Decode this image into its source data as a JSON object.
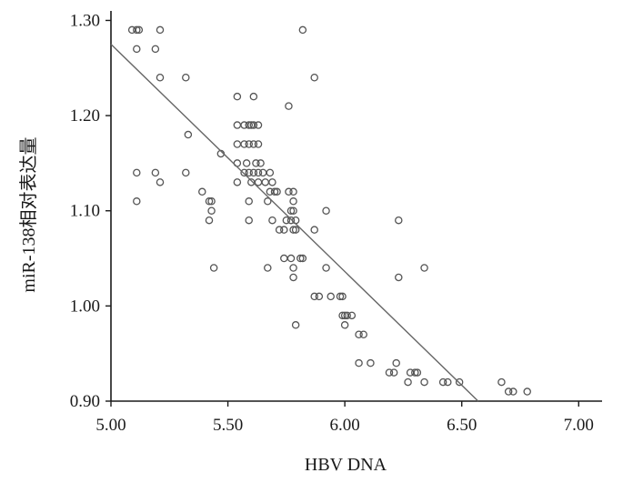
{
  "colors": {
    "axis": "#1a1a1a",
    "points": "#555555",
    "fit_line": "#666666",
    "background": "#ffffff"
  },
  "chart_data": {
    "type": "scatter",
    "title": "",
    "xlabel": "HBV DNA",
    "ylabel": "miR-138相对表达量",
    "xlim": [
      5.0,
      7.1
    ],
    "ylim": [
      0.9,
      1.31
    ],
    "xticks": [
      5.0,
      5.5,
      6.0,
      6.5,
      7.0
    ],
    "xtick_labels": [
      "5.00",
      "5.50",
      "6.00",
      "6.50",
      "7.00"
    ],
    "yticks": [
      0.9,
      1.0,
      1.1,
      1.2,
      1.3
    ],
    "ytick_labels": [
      "0.90",
      "1.00",
      "1.10",
      "1.20",
      "1.30"
    ],
    "grid": false,
    "legend": "none",
    "fit_line": {
      "x": [
        5.0,
        6.57
      ],
      "y": [
        1.275,
        0.9
      ]
    },
    "points": [
      [
        5.09,
        1.29
      ],
      [
        5.11,
        1.29
      ],
      [
        5.12,
        1.29
      ],
      [
        5.11,
        1.27
      ],
      [
        5.21,
        1.29
      ],
      [
        5.19,
        1.27
      ],
      [
        5.21,
        1.24
      ],
      [
        5.32,
        1.24
      ],
      [
        5.33,
        1.18
      ],
      [
        5.11,
        1.14
      ],
      [
        5.11,
        1.11
      ],
      [
        5.19,
        1.14
      ],
      [
        5.21,
        1.13
      ],
      [
        5.32,
        1.14
      ],
      [
        5.39,
        1.12
      ],
      [
        5.42,
        1.11
      ],
      [
        5.43,
        1.11
      ],
      [
        5.43,
        1.1
      ],
      [
        5.42,
        1.09
      ],
      [
        5.44,
        1.04
      ],
      [
        5.47,
        1.16
      ],
      [
        5.54,
        1.22
      ],
      [
        5.61,
        1.22
      ],
      [
        5.54,
        1.19
      ],
      [
        5.57,
        1.19
      ],
      [
        5.59,
        1.19
      ],
      [
        5.6,
        1.19
      ],
      [
        5.61,
        1.19
      ],
      [
        5.63,
        1.19
      ],
      [
        5.54,
        1.17
      ],
      [
        5.57,
        1.17
      ],
      [
        5.59,
        1.17
      ],
      [
        5.61,
        1.17
      ],
      [
        5.63,
        1.17
      ],
      [
        5.54,
        1.15
      ],
      [
        5.58,
        1.15
      ],
      [
        5.62,
        1.15
      ],
      [
        5.64,
        1.15
      ],
      [
        5.57,
        1.14
      ],
      [
        5.59,
        1.14
      ],
      [
        5.61,
        1.14
      ],
      [
        5.63,
        1.14
      ],
      [
        5.65,
        1.14
      ],
      [
        5.68,
        1.14
      ],
      [
        5.54,
        1.13
      ],
      [
        5.6,
        1.13
      ],
      [
        5.63,
        1.13
      ],
      [
        5.66,
        1.13
      ],
      [
        5.69,
        1.13
      ],
      [
        5.68,
        1.12
      ],
      [
        5.7,
        1.12
      ],
      [
        5.71,
        1.12
      ],
      [
        5.59,
        1.11
      ],
      [
        5.67,
        1.11
      ],
      [
        5.69,
        1.09
      ],
      [
        5.59,
        1.09
      ],
      [
        5.72,
        1.08
      ],
      [
        5.74,
        1.08
      ],
      [
        5.75,
        1.09
      ],
      [
        5.76,
        1.12
      ],
      [
        5.78,
        1.12
      ],
      [
        5.78,
        1.11
      ],
      [
        5.77,
        1.1
      ],
      [
        5.78,
        1.1
      ],
      [
        5.77,
        1.09
      ],
      [
        5.79,
        1.09
      ],
      [
        5.78,
        1.08
      ],
      [
        5.79,
        1.08
      ],
      [
        5.87,
        1.08
      ],
      [
        5.67,
        1.04
      ],
      [
        5.74,
        1.05
      ],
      [
        5.77,
        1.05
      ],
      [
        5.78,
        1.04
      ],
      [
        5.81,
        1.05
      ],
      [
        5.82,
        1.05
      ],
      [
        5.78,
        1.03
      ],
      [
        5.76,
        1.21
      ],
      [
        5.82,
        1.29
      ],
      [
        5.87,
        1.24
      ],
      [
        5.92,
        1.1
      ],
      [
        5.92,
        1.04
      ],
      [
        5.87,
        1.01
      ],
      [
        5.89,
        1.01
      ],
      [
        5.94,
        1.01
      ],
      [
        5.98,
        1.01
      ],
      [
        5.99,
        1.01
      ],
      [
        5.99,
        0.99
      ],
      [
        6.0,
        0.99
      ],
      [
        6.01,
        0.99
      ],
      [
        6.03,
        0.99
      ],
      [
        6.0,
        0.98
      ],
      [
        5.79,
        0.98
      ],
      [
        6.06,
        0.97
      ],
      [
        6.08,
        0.97
      ],
      [
        6.06,
        0.94
      ],
      [
        6.11,
        0.94
      ],
      [
        6.19,
        0.93
      ],
      [
        6.21,
        0.93
      ],
      [
        6.22,
        0.94
      ],
      [
        6.23,
        1.09
      ],
      [
        6.23,
        1.03
      ],
      [
        6.34,
        1.04
      ],
      [
        6.27,
        0.92
      ],
      [
        6.28,
        0.93
      ],
      [
        6.3,
        0.93
      ],
      [
        6.31,
        0.93
      ],
      [
        6.34,
        0.92
      ],
      [
        6.42,
        0.92
      ],
      [
        6.44,
        0.92
      ],
      [
        6.49,
        0.92
      ],
      [
        6.67,
        0.92
      ],
      [
        6.7,
        0.91
      ],
      [
        6.72,
        0.91
      ],
      [
        6.78,
        0.91
      ]
    ]
  }
}
